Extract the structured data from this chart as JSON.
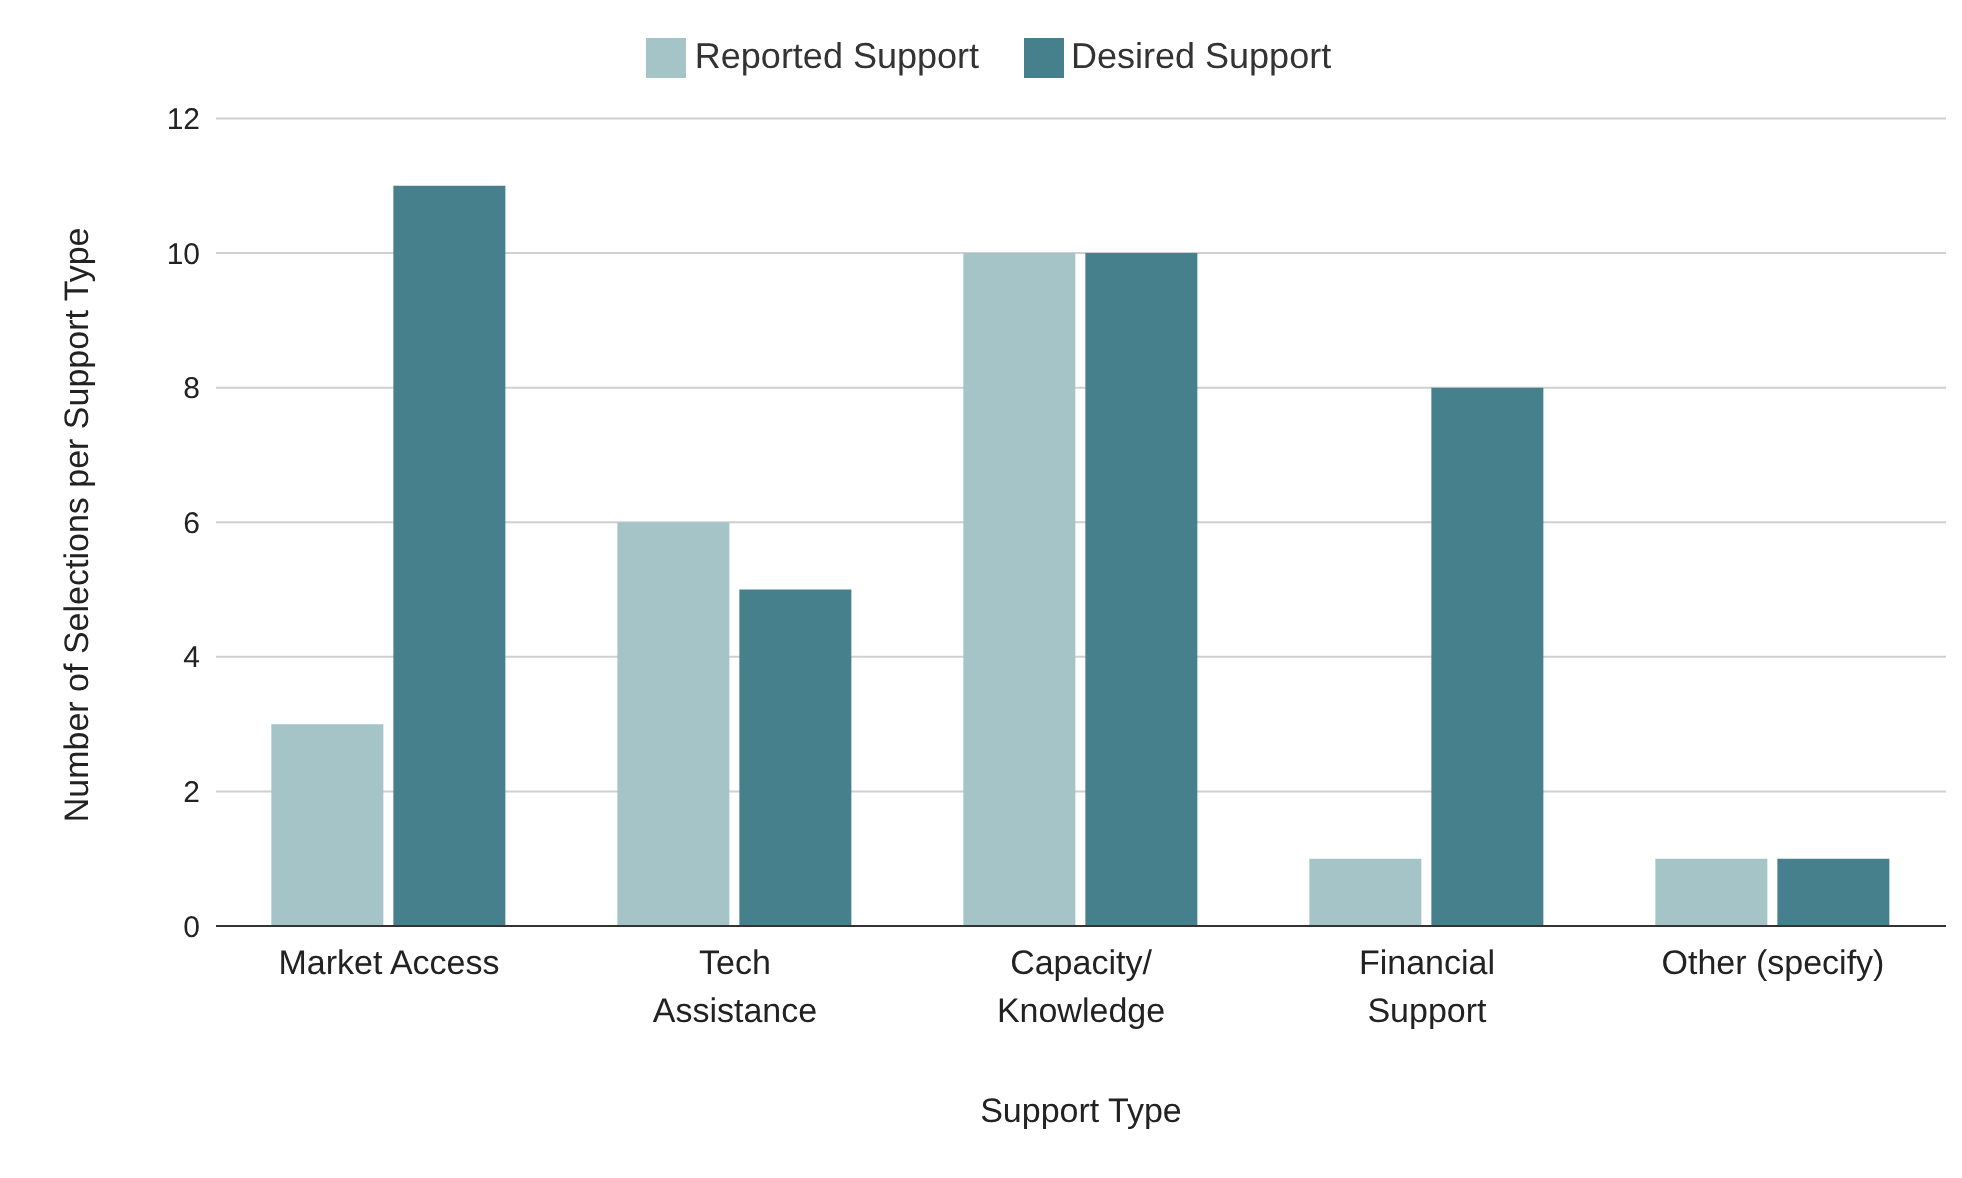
{
  "chart_data": {
    "type": "bar",
    "xlabel": "Support Type",
    "ylabel": "Number of Selections per Support Type",
    "categories": [
      "Market Access",
      "Tech\nAssistance",
      "Capacity/\nKnowledge",
      "Financial\nSupport",
      "Other (specify)"
    ],
    "series": [
      {
        "name": "Reported Support",
        "color": "#a4c4c8",
        "values": [
          3,
          6,
          10,
          1,
          1
        ]
      },
      {
        "name": "Desired Support",
        "color": "#45808c",
        "values": [
          11,
          5,
          10,
          8,
          1
        ]
      }
    ],
    "ylim": [
      0,
      12
    ],
    "yticks": [
      0,
      2,
      4,
      6,
      8,
      10,
      12
    ],
    "grid": "y",
    "legend": "top"
  }
}
